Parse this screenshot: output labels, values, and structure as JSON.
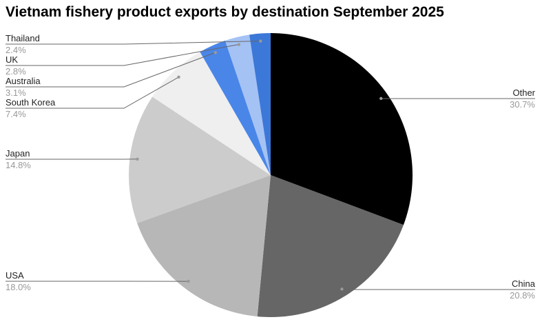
{
  "chart_data": {
    "type": "pie",
    "title": "Vietnam fishery product exports by destination September 2025",
    "start_angle": "top, clockwise",
    "slices": [
      {
        "label": "Other",
        "value": 30.7,
        "display": "30.7%",
        "color": "#000000"
      },
      {
        "label": "China",
        "value": 20.8,
        "display": "20.8%",
        "color": "#666666"
      },
      {
        "label": "USA",
        "value": 18.0,
        "display": "18.0%",
        "color": "#b7b7b7"
      },
      {
        "label": "Japan",
        "value": 14.8,
        "display": "14.8%",
        "color": "#cccccc"
      },
      {
        "label": "South Korea",
        "value": 7.4,
        "display": "7.4%",
        "color": "#efefef"
      },
      {
        "label": "Australia",
        "value": 3.1,
        "display": "3.1%",
        "color": "#4a86e8"
      },
      {
        "label": "UK",
        "value": 2.8,
        "display": "2.8%",
        "color": "#a4c2f4"
      },
      {
        "label": "Thailand",
        "value": 2.4,
        "display": "2.4%",
        "color": "#3c78d8"
      }
    ]
  }
}
